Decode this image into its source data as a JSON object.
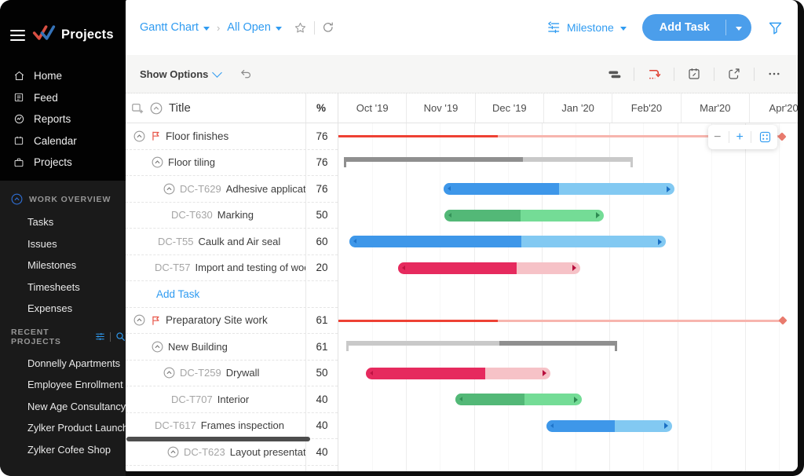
{
  "app": {
    "name": "Projects"
  },
  "sidebar": {
    "primary_nav": [
      {
        "icon": "home-icon",
        "label": "Home"
      },
      {
        "icon": "feed-icon",
        "label": "Feed"
      },
      {
        "icon": "reports-icon",
        "label": "Reports"
      },
      {
        "icon": "calendar-icon",
        "label": "Calendar"
      },
      {
        "icon": "briefcase-icon",
        "label": "Projects"
      }
    ],
    "work_overview": {
      "label": "WORK OVERVIEW",
      "items": [
        "Tasks",
        "Issues",
        "Milestones",
        "Timesheets",
        "Expenses"
      ]
    },
    "recent_projects": {
      "label": "RECENT PROJECTS",
      "items": [
        "Donnelly Apartments",
        "Employee Enrollment",
        "New Age Consultancy",
        "Zylker Product Launch",
        "Zylker Cofee Shop"
      ]
    }
  },
  "topbar": {
    "view_selector": "Gantt Chart",
    "filter_selector": "All Open",
    "group_by": "Milestone",
    "add_task": "Add Task"
  },
  "toolbar": {
    "show_options": "Show Options"
  },
  "table": {
    "title_header": "Title",
    "percent_header": "%",
    "rows": [
      {
        "kind": "milestone",
        "label": "Floor finishes",
        "percent": "76",
        "indent": 10,
        "chevron": true,
        "flag": true,
        "bar": {
          "type": "line",
          "color": "red",
          "start": 0.0,
          "progress": 0.347,
          "end": 0.96
        }
      },
      {
        "kind": "tasklist",
        "label": "Floor tiling",
        "percent": "76",
        "indent": 33,
        "chevron": true,
        "bar": {
          "type": "summary",
          "style": "solid-first",
          "start": 0.012,
          "progress": 0.401,
          "end": 0.64
        }
      },
      {
        "kind": "task",
        "prefix": "DC-T629",
        "label": "Adhesive application",
        "percent": "76",
        "indent": 48,
        "chevron": true,
        "bar": {
          "type": "pill",
          "color": "blue",
          "start": 0.229,
          "progress": 0.479,
          "end": 0.731
        }
      },
      {
        "kind": "task",
        "prefix": "DC-T630",
        "label": "Marking",
        "percent": "50",
        "indent": 58,
        "bar": {
          "type": "pill",
          "color": "green",
          "start": 0.23,
          "progress": 0.396,
          "end": 0.577
        }
      },
      {
        "kind": "task",
        "prefix": "DC-T55",
        "label": "Caulk and Air seal",
        "percent": "60",
        "indent": 41,
        "bar": {
          "type": "pill",
          "color": "blue",
          "start": 0.024,
          "progress": 0.398,
          "end": 0.712
        }
      },
      {
        "kind": "task",
        "prefix": "DC-T57",
        "label": "Import and testing of woo..",
        "percent": "20",
        "indent": 37,
        "bar": {
          "type": "pill",
          "color": "crimson",
          "start": 0.13,
          "progress": 0.387,
          "end": 0.526
        }
      },
      {
        "kind": "add-task",
        "label": "Add Task",
        "percent": "",
        "indent": 39
      },
      {
        "kind": "milestone",
        "label": "Preparatory Site work",
        "percent": "61",
        "indent": 10,
        "chevron": true,
        "flag": true,
        "bar": {
          "type": "line",
          "color": "red",
          "start": 0.0,
          "progress": 0.347,
          "end": 0.962
        }
      },
      {
        "kind": "tasklist",
        "label": "New Building",
        "percent": "61",
        "indent": 33,
        "chevron": true,
        "bar": {
          "type": "summary",
          "style": "light-first",
          "start": 0.017,
          "progress": 0.35,
          "end": 0.606
        }
      },
      {
        "kind": "task",
        "prefix": "DC-T259",
        "label": "Drywall",
        "percent": "50",
        "indent": 48,
        "chevron": true,
        "bar": {
          "type": "pill",
          "color": "crimson",
          "start": 0.06,
          "progress": 0.319,
          "end": 0.461
        }
      },
      {
        "kind": "task",
        "prefix": "DC-T707",
        "label": "Interior",
        "percent": "40",
        "indent": 58,
        "bar": {
          "type": "pill",
          "color": "green",
          "start": 0.254,
          "progress": 0.404,
          "end": 0.529
        }
      },
      {
        "kind": "task",
        "prefix": "DC-T617",
        "label": "Frames inspection",
        "percent": "40",
        "indent": 37,
        "bar": {
          "type": "pill",
          "color": "blue",
          "start": 0.452,
          "progress": 0.601,
          "end": 0.725
        }
      },
      {
        "kind": "task",
        "prefix": "DC-T623",
        "label": "Layout presentation",
        "percent": "40",
        "indent": 53,
        "chevron": true
      }
    ],
    "add_task_link": "Add Task"
  },
  "timeline": {
    "months": [
      "Oct '19",
      "Nov '19",
      "Dec '19",
      "Jan '20",
      "Feb'20",
      "Mar'20",
      "Apr'20"
    ]
  },
  "zoom_control": {
    "minus": "−",
    "plus": "+"
  },
  "gantt_palette": {
    "blue": {
      "solid": "#3e97e9",
      "light": "#82c9f2",
      "dark": "#1a6fc4"
    },
    "green": {
      "solid": "#53b877",
      "light": "#74dc96",
      "dark": "#2e8a52"
    },
    "crimson": {
      "solid": "#e62a5e",
      "light": "#f6c2c7",
      "dark": "#b80f3e"
    },
    "red": {
      "solid": "#ee4134",
      "light": "#f7b5ae",
      "dark": "#e97b6e"
    },
    "gray": {
      "solid": "#8f8f8f",
      "light": "#c9c9c9"
    }
  },
  "accent_blue": "#2f9bf1"
}
